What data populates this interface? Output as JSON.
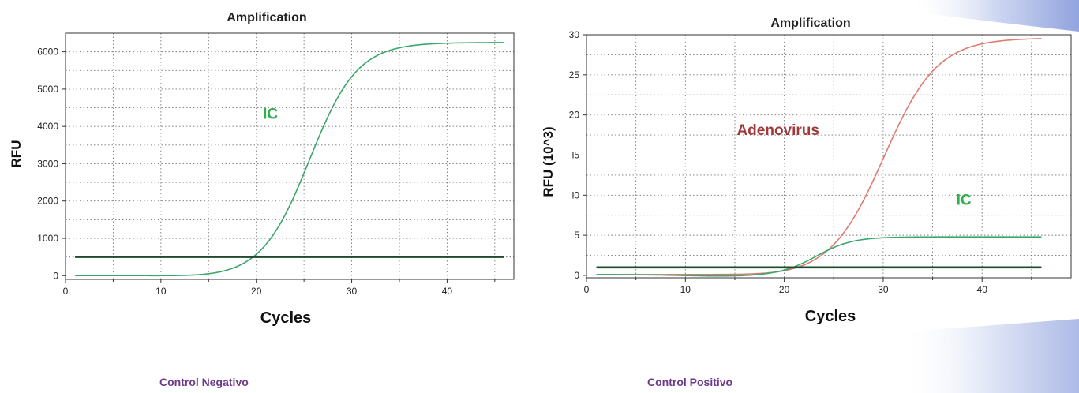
{
  "chart_data": [
    {
      "type": "line",
      "title": "Amplification",
      "xlabel": "Cycles",
      "ylabel": "RFU",
      "xlim": [
        0,
        47
      ],
      "ylim": [
        -100,
        6500
      ],
      "xticks": [
        0,
        10,
        20,
        30,
        40
      ],
      "yticks": [
        0,
        1000,
        2000,
        3000,
        4000,
        5000,
        6000
      ],
      "grid": true,
      "series": [
        {
          "name": "IC",
          "color": "#3aa66a",
          "model": {
            "base": 0,
            "dip": 40,
            "top": 6250,
            "mid": 25.6,
            "slope": 2.5
          }
        },
        {
          "name": "",
          "type": "threshold",
          "color": "#1f4a2b",
          "y": 500,
          "x": [
            1,
            46
          ]
        }
      ],
      "annotations": [
        {
          "text": "IC",
          "x": 20.7,
          "y": 4200,
          "color": "#2eb04f"
        }
      ],
      "caption": "Control Negativo"
    },
    {
      "type": "line",
      "title": "Amplification",
      "xlabel": "Cycles",
      "ylabel": "RFU (10^3)",
      "xlim": [
        0,
        49
      ],
      "ylim": [
        -0.3,
        30
      ],
      "xticks": [
        0,
        10,
        20,
        30,
        40
      ],
      "yticks": [
        0,
        5,
        10,
        15,
        20,
        25,
        30
      ],
      "ytick_labels": [
        "0",
        "5",
        "l0",
        "l5",
        "20",
        "25",
        "30"
      ],
      "grid": true,
      "series": [
        {
          "name": "Adenovirus",
          "color": "#e07a72",
          "model": {
            "base": 0.1,
            "dip": 0.2,
            "top": 29.6,
            "mid": 30.1,
            "slope": 2.7
          }
        },
        {
          "name": "IC",
          "color": "#3aa66a",
          "model": {
            "base": 0.1,
            "dip": 0.2,
            "top": 4.8,
            "mid": 23.3,
            "slope": 1.8
          }
        },
        {
          "name": "",
          "type": "threshold",
          "color": "#1f4a2b",
          "y": 1.0,
          "x": [
            1,
            46
          ]
        }
      ],
      "annotations": [
        {
          "text": "Adenovirus",
          "x": 15.2,
          "y": 17.5,
          "color": "#9e3a3a"
        },
        {
          "text": "IC",
          "x": 37.4,
          "y": 8.8,
          "color": "#2eb04f"
        }
      ],
      "caption": "Control Positivo"
    }
  ]
}
